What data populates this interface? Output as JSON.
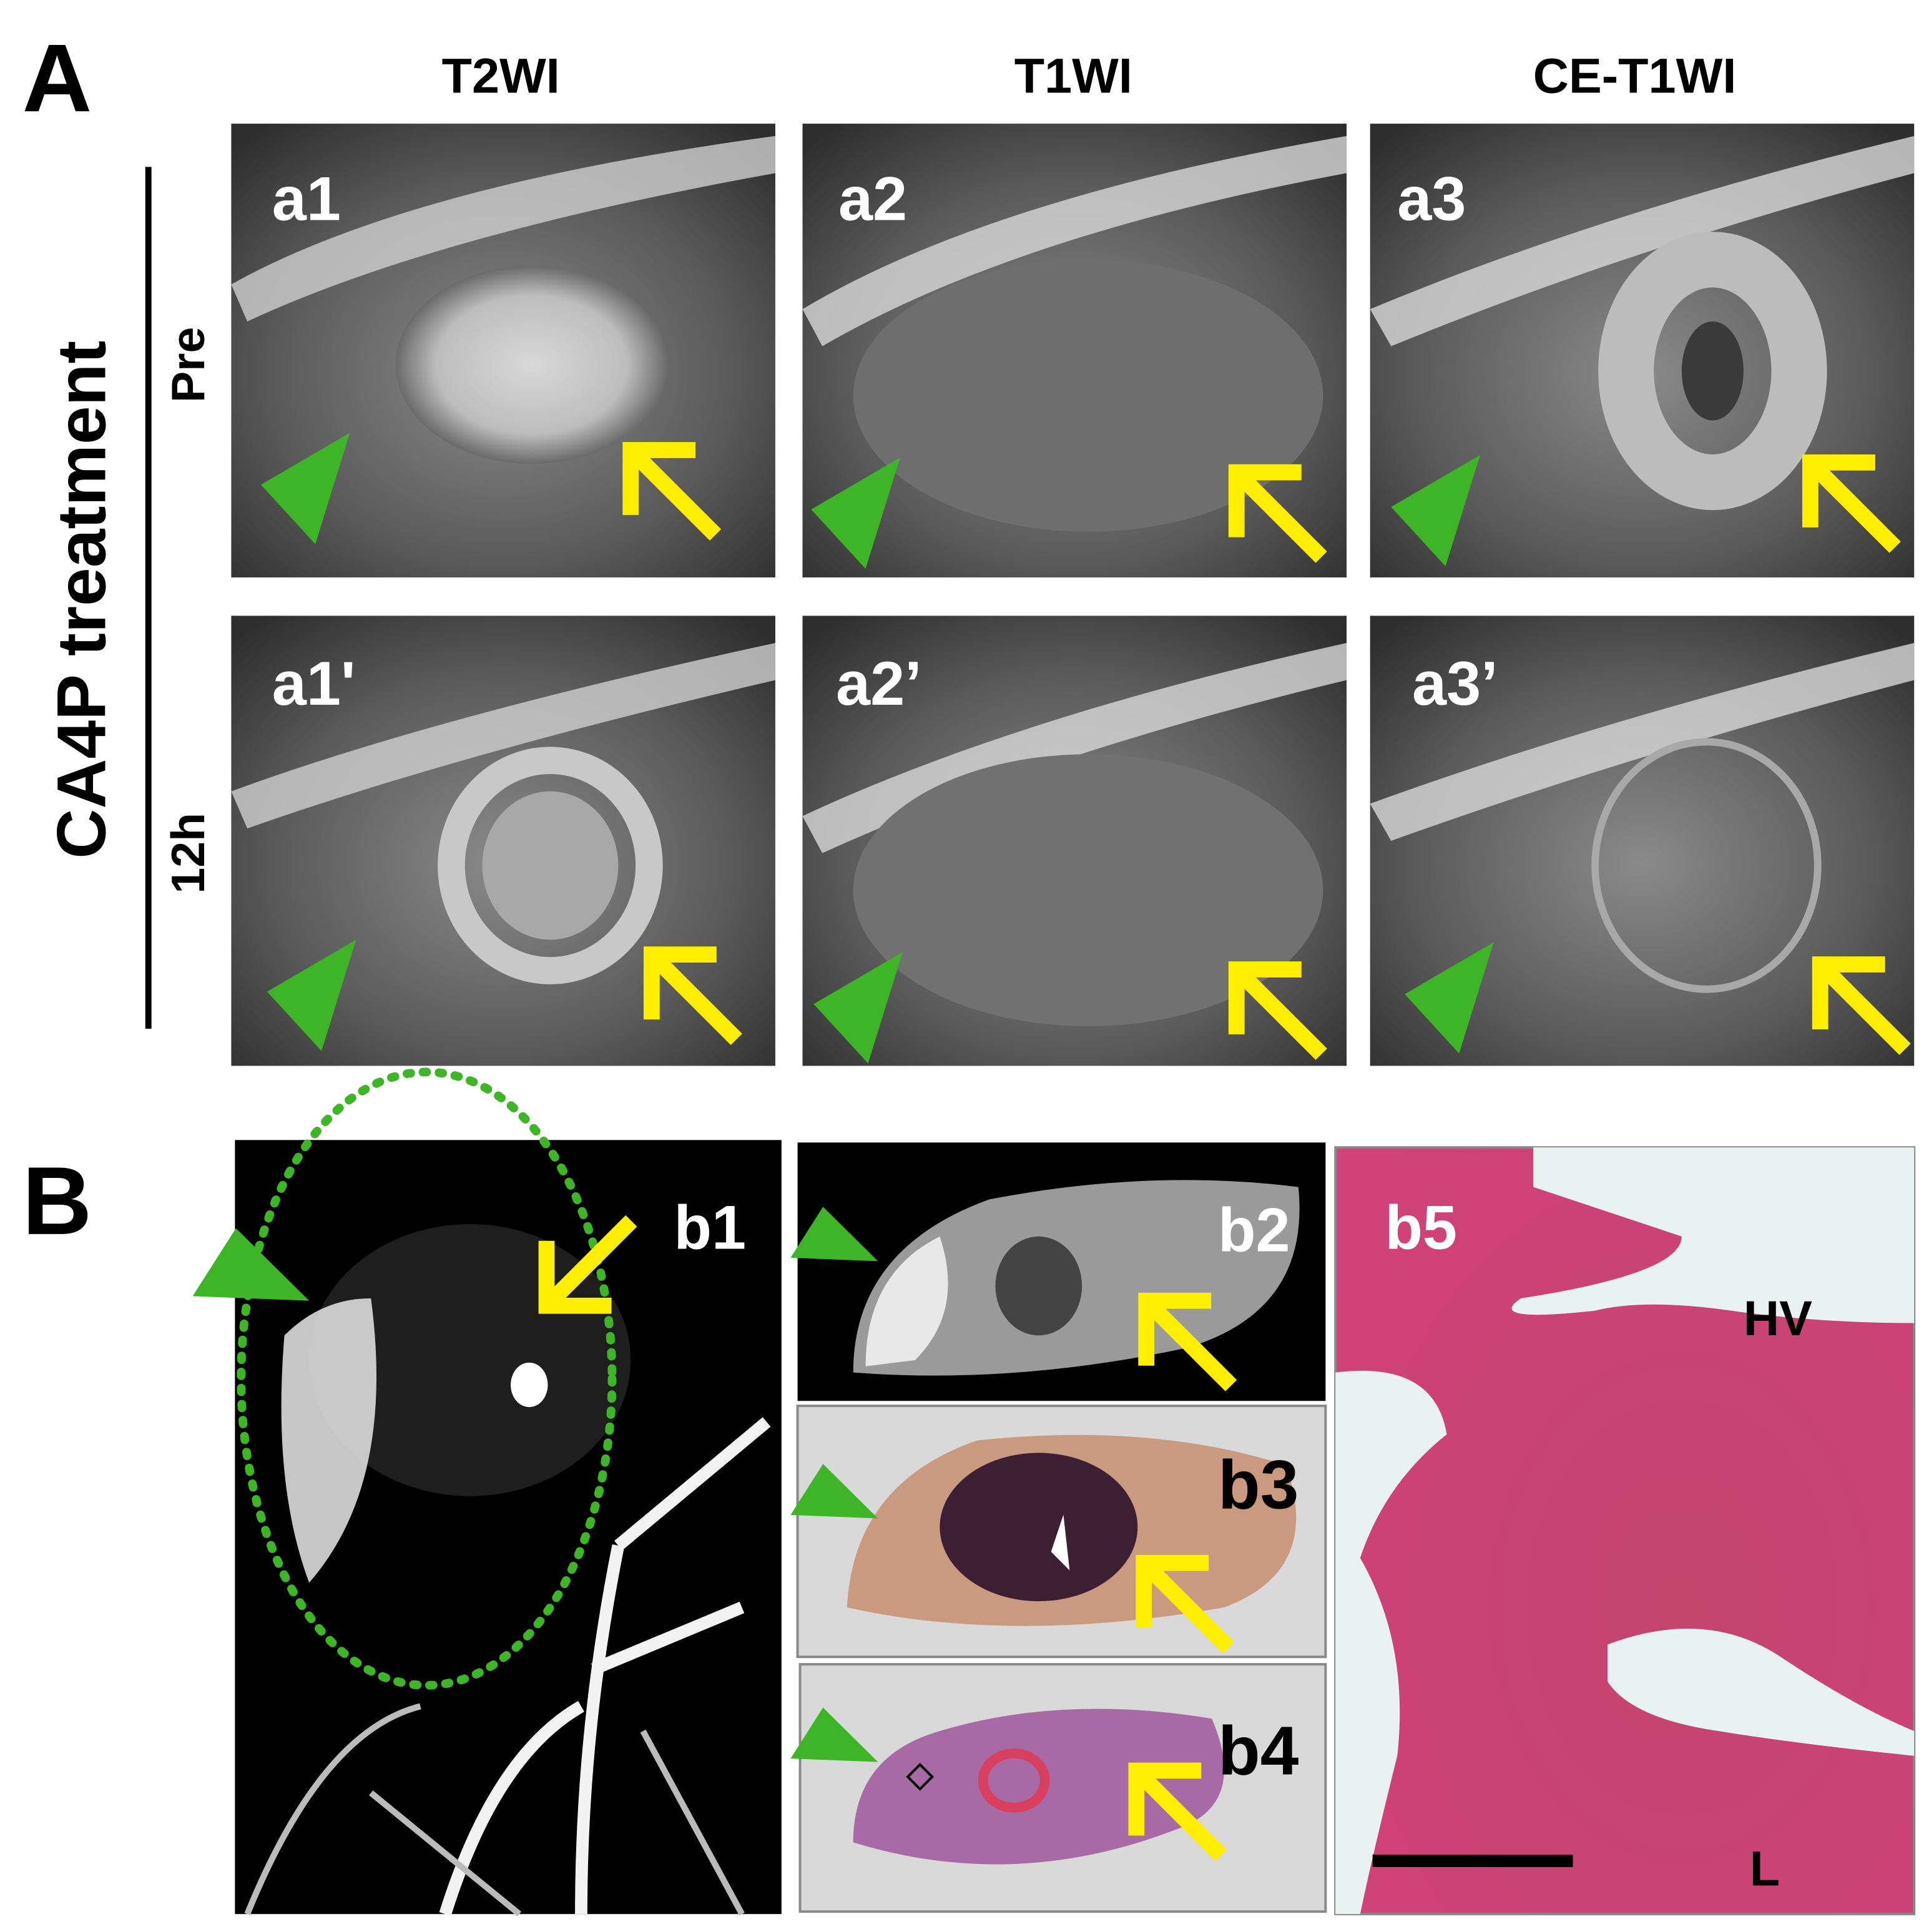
{
  "panel_a": {
    "label": "A",
    "columns": [
      "T2WI",
      "T1WI",
      "CE-T1WI"
    ],
    "side_label": "CA4P treatment",
    "rows": [
      "Pre",
      "12h"
    ],
    "images": [
      [
        "a1",
        "a2",
        "a3"
      ],
      [
        "a1'",
        "a2’",
        "a3’"
      ]
    ]
  },
  "panel_b": {
    "label": "B",
    "images": [
      "b1",
      "b2",
      "b3",
      "b4",
      "b5"
    ],
    "annotations": [
      "HV",
      "L"
    ]
  }
}
